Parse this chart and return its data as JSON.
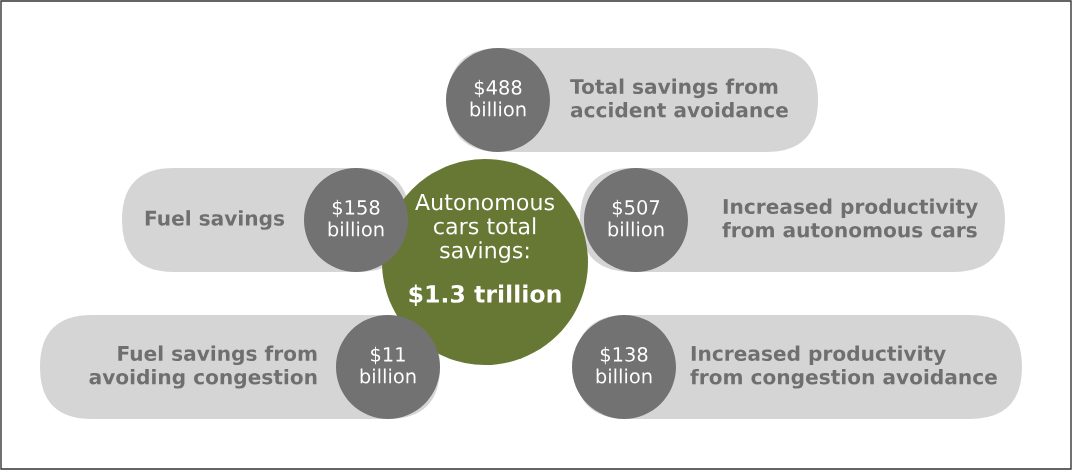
{
  "chart_data": {
    "type": "other",
    "title": "Autonomous\ncars total\nsavings:",
    "subtitle": "$1.3 trillion",
    "categories": [
      "Total savings from\naccident avoidance",
      "Fuel savings",
      "Increased productivity\nfrom autonomous cars",
      "Fuel savings from\navoiding congestion",
      "Increased productivity\nfrom congestion avoidance"
    ],
    "values": [
      488,
      158,
      507,
      11,
      138
    ],
    "value_labels": [
      "$488 billion",
      "$158 billion",
      "$507 billion",
      "$11 billion",
      "$138 billion"
    ]
  }
}
